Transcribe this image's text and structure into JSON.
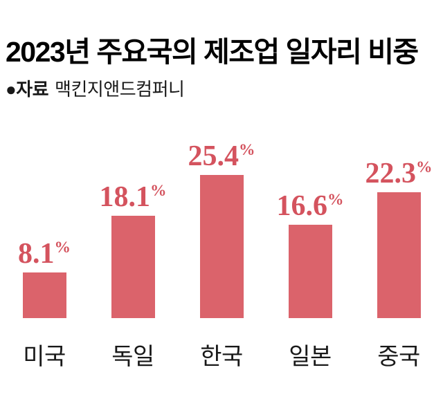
{
  "page": {
    "background": "#ffffff"
  },
  "header": {
    "title": "2023년 주요국의 제조업 일자리 비중",
    "source_bullet_and_label": "●자료",
    "source_value": "맥킨지앤드컴퍼니"
  },
  "colors": {
    "title": "#000000",
    "category_text": "#191919",
    "bar": "#db636b",
    "value_label": "#d4535e"
  },
  "chart_data": {
    "type": "bar",
    "title": "2023년 주요국의 제조업 일자리 비중",
    "source": "맥킨지앤드컴퍼니",
    "categories": [
      "미국",
      "독일",
      "한국",
      "일본",
      "중국"
    ],
    "values": [
      8.1,
      18.1,
      25.4,
      16.6,
      22.3
    ],
    "unit": "%",
    "xlabel": "",
    "ylabel": "",
    "ylim": [
      0,
      33.1
    ],
    "grid": false,
    "legend": false,
    "value_labels_position": "above-bars",
    "bar_color": "#db636b",
    "value_label_color": "#d4535e",
    "orientation": "vertical"
  }
}
